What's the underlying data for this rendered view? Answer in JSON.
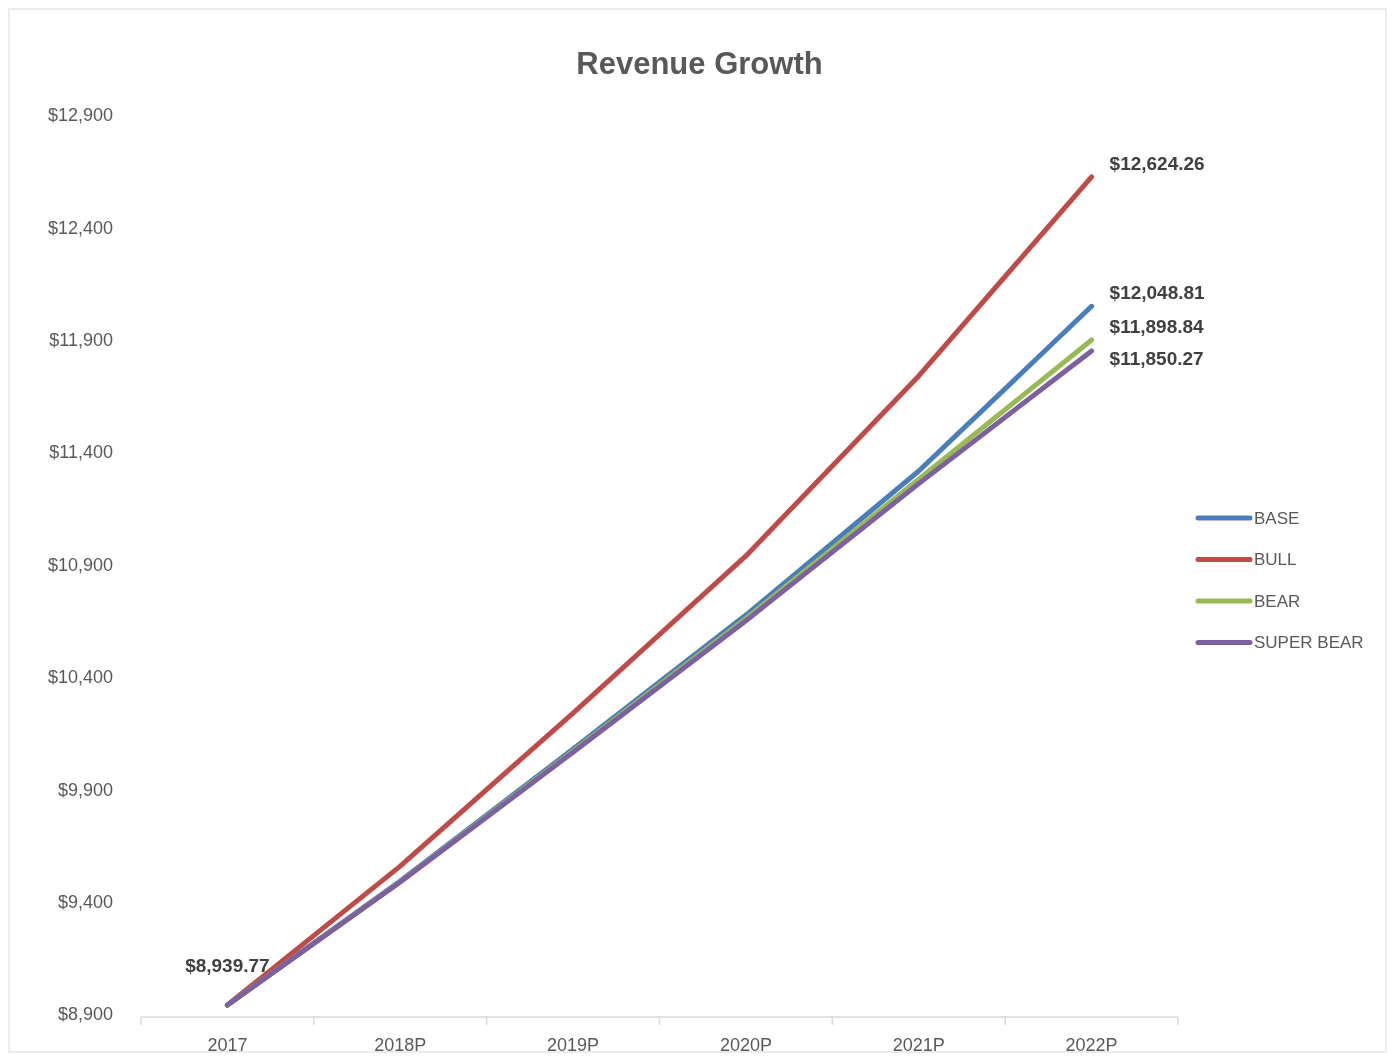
{
  "chart_data": {
    "type": "line",
    "title": "Revenue Growth",
    "categories": [
      "2017",
      "2018P",
      "2019P",
      "2020P",
      "2021P",
      "2022P"
    ],
    "series": [
      {
        "name": "BASE",
        "color": "#4a7ebb",
        "values": [
          8940,
          9492,
          10079,
          10675,
          11316,
          12048.81
        ],
        "value_labels": [
          null,
          null,
          null,
          null,
          null,
          "$12,048.81"
        ]
      },
      {
        "name": "BULL",
        "color": "#be4b48",
        "values": [
          8940,
          9558,
          10239,
          10938,
          11739,
          12624.26
        ],
        "value_labels": [
          null,
          null,
          null,
          null,
          null,
          "$12,624.26"
        ]
      },
      {
        "name": "BEAR",
        "color": "#98b954",
        "values": [
          8940,
          9489,
          10070,
          10660,
          11280,
          11898.84
        ],
        "value_labels": [
          null,
          null,
          null,
          null,
          null,
          "$11,898.84"
        ]
      },
      {
        "name": "SUPER BEAR",
        "color": "#7d60a0",
        "values": [
          8939.77,
          9487,
          10065,
          10650,
          11260,
          11850.27
        ],
        "value_labels": [
          "$8,939.77",
          null,
          null,
          null,
          null,
          "$11,850.27"
        ]
      }
    ],
    "ylim": [
      8900,
      12900
    ],
    "yticks": [
      {
        "value": 8900,
        "label": "$8,900"
      },
      {
        "value": 9400,
        "label": "$9,400"
      },
      {
        "value": 9900,
        "label": "$9,900"
      },
      {
        "value": 10400,
        "label": "$10,400"
      },
      {
        "value": 10900,
        "label": "$10,900"
      },
      {
        "value": 11400,
        "label": "$11,400"
      },
      {
        "value": 11900,
        "label": "$11,900"
      },
      {
        "value": 12400,
        "label": "$12,400"
      },
      {
        "value": 12900,
        "label": "$12,900"
      }
    ],
    "legend": "right",
    "marker": "none",
    "line_style": "solid"
  }
}
